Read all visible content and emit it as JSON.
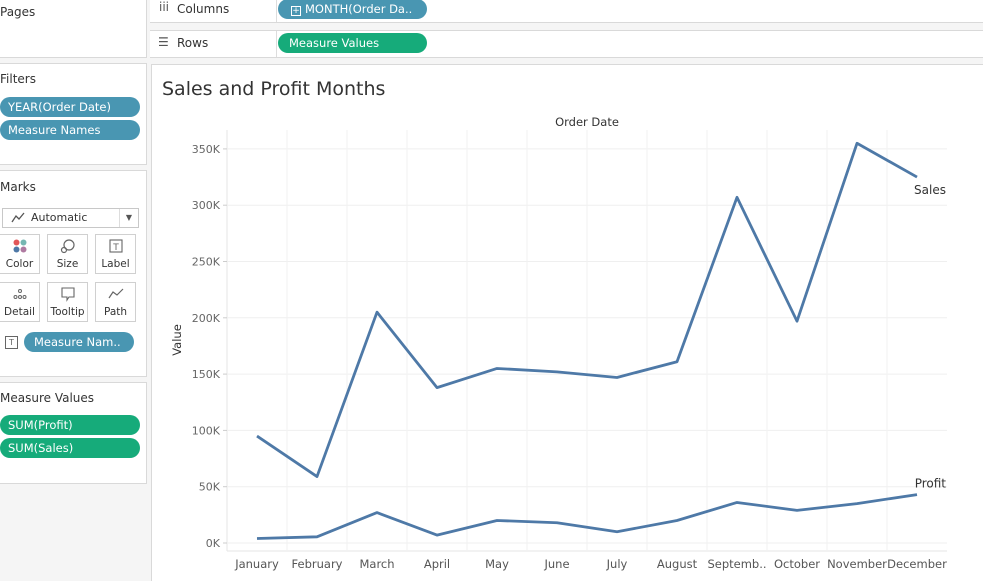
{
  "pages": {
    "title": "Pages"
  },
  "filters": {
    "title": "Filters",
    "items": [
      {
        "label": "YEAR(Order Date)"
      },
      {
        "label": "Measure Names"
      }
    ]
  },
  "marks": {
    "title": "Marks",
    "type": "Automatic",
    "buttons": [
      {
        "label": "Color",
        "icon": "color-icon"
      },
      {
        "label": "Size",
        "icon": "size-icon"
      },
      {
        "label": "Label",
        "icon": "label-icon"
      },
      {
        "label": "Detail",
        "icon": "detail-icon"
      },
      {
        "label": "Tooltip",
        "icon": "tooltip-icon"
      },
      {
        "label": "Path",
        "icon": "path-icon"
      }
    ],
    "field": "Measure Nam.."
  },
  "measure_values": {
    "title": "Measure Values",
    "items": [
      {
        "label": "SUM(Profit)"
      },
      {
        "label": "SUM(Sales)"
      }
    ]
  },
  "columns": {
    "label": "Columns",
    "pill": "MONTH(Order Da.."
  },
  "rows": {
    "label": "Rows",
    "pill": "Measure Values"
  },
  "colors": {
    "blue_pill": "#4996b2",
    "green_pill": "#16ab7a",
    "line": "#4e79a7"
  },
  "chart_data": {
    "type": "line",
    "title": "Sales and Profit Months",
    "xlabel": "Order Date",
    "ylabel": "Value",
    "categories": [
      "January",
      "February",
      "March",
      "April",
      "May",
      "June",
      "July",
      "August",
      "Septemb..",
      "October",
      "November",
      "December"
    ],
    "y_ticks": [
      "0K",
      "50K",
      "100K",
      "150K",
      "200K",
      "250K",
      "300K",
      "350K"
    ],
    "ylim": [
      0,
      360000
    ],
    "grid": true,
    "series": [
      {
        "name": "Sales",
        "values": [
          95000,
          59000,
          205000,
          138000,
          155000,
          152000,
          147000,
          161000,
          307000,
          197000,
          355000,
          325000
        ]
      },
      {
        "name": "Profit",
        "values": [
          4000,
          5500,
          27000,
          7000,
          20000,
          18000,
          10000,
          20000,
          36000,
          29000,
          35000,
          43000
        ]
      }
    ]
  }
}
